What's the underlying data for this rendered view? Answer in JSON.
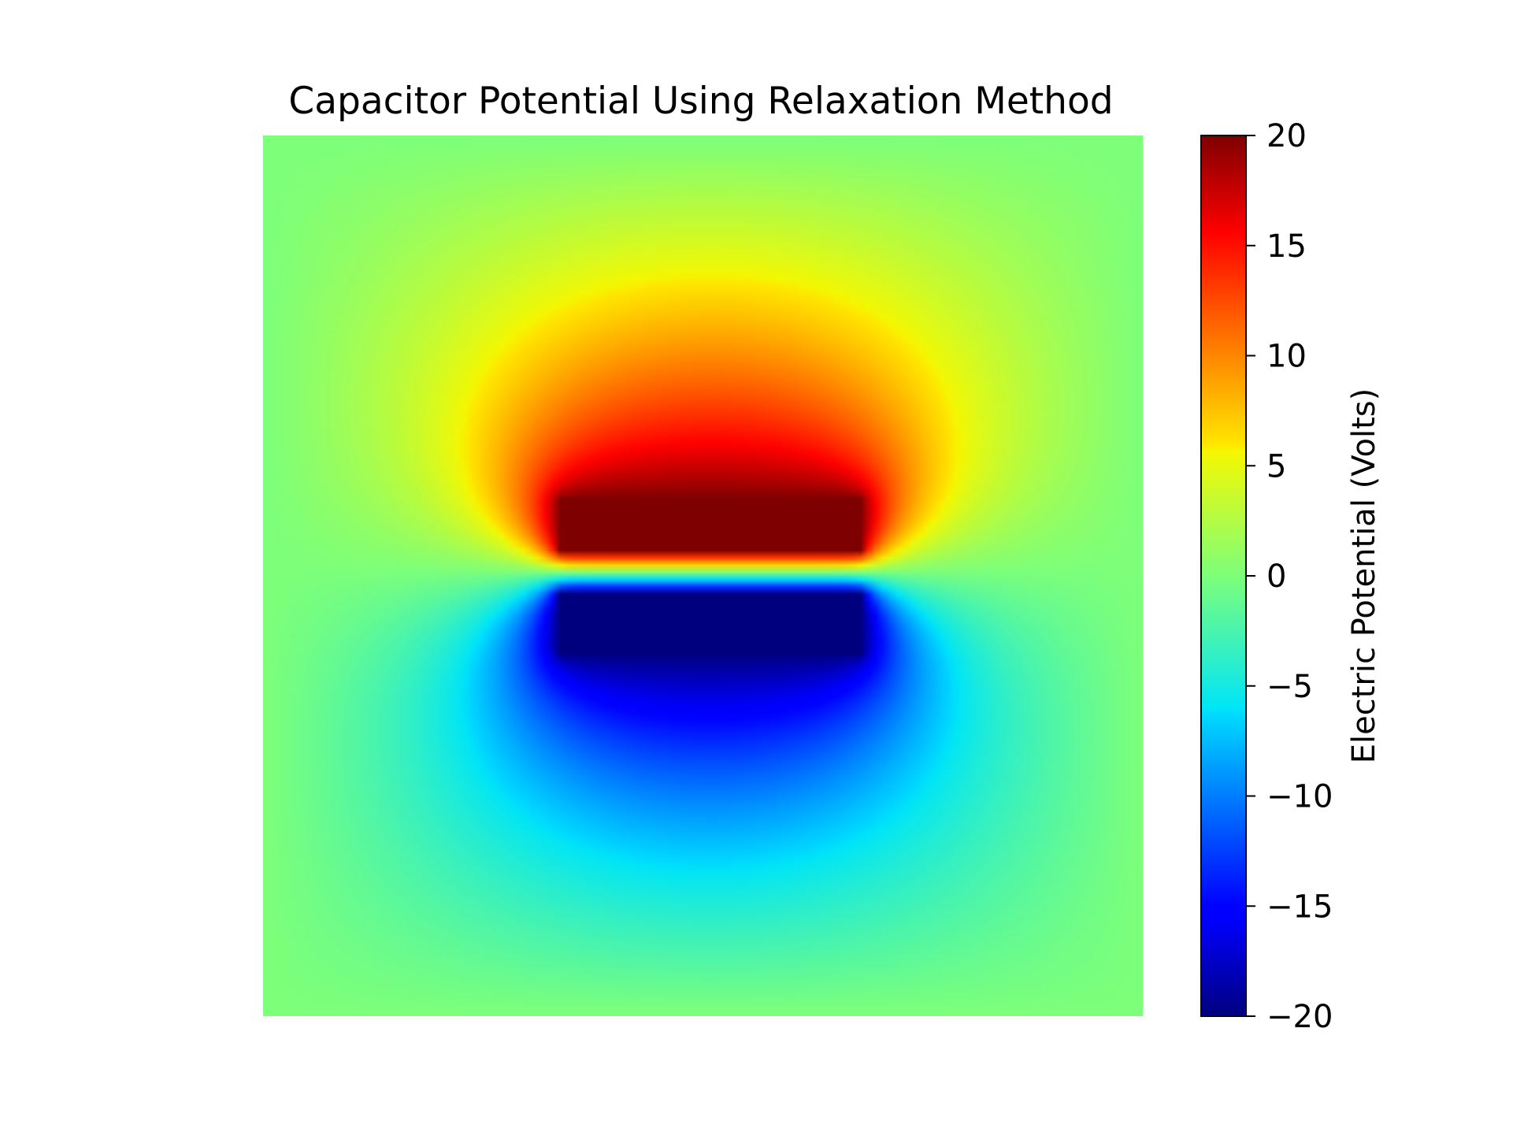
{
  "chart_data": {
    "type": "heatmap",
    "title": "Capacitor Potential Using Relaxation Method",
    "colormap": "jet",
    "axes_visible": false,
    "grid": false,
    "description_values": {
      "top_plate_potential": 20,
      "bottom_plate_potential": -20,
      "boundary_potential": 0
    },
    "colorbar": {
      "label": "Electric Potential (Volts)",
      "range": [
        -20,
        20
      ],
      "placement": "right",
      "ticks": [
        {
          "value": 20,
          "label": "20"
        },
        {
          "value": 15,
          "label": "15"
        },
        {
          "value": 10,
          "label": "10"
        },
        {
          "value": 5,
          "label": "5"
        },
        {
          "value": 0,
          "label": "0"
        },
        {
          "value": -5,
          "label": "−5"
        },
        {
          "value": -10,
          "label": "−10"
        },
        {
          "value": -15,
          "label": "−15"
        },
        {
          "value": -20,
          "label": "−20"
        }
      ]
    },
    "jet_stops": [
      [
        0.0,
        "#00007f"
      ],
      [
        0.11,
        "#0000ff"
      ],
      [
        0.125,
        "#0000ff"
      ],
      [
        0.34,
        "#00d8ff"
      ],
      [
        0.35,
        "#00e5f7"
      ],
      [
        0.5,
        "#7dff7a"
      ],
      [
        0.64,
        "#f4f802"
      ],
      [
        0.65,
        "#ffe600"
      ],
      [
        0.89,
        "#ff0000"
      ],
      [
        1.0,
        "#7f0000"
      ]
    ]
  }
}
